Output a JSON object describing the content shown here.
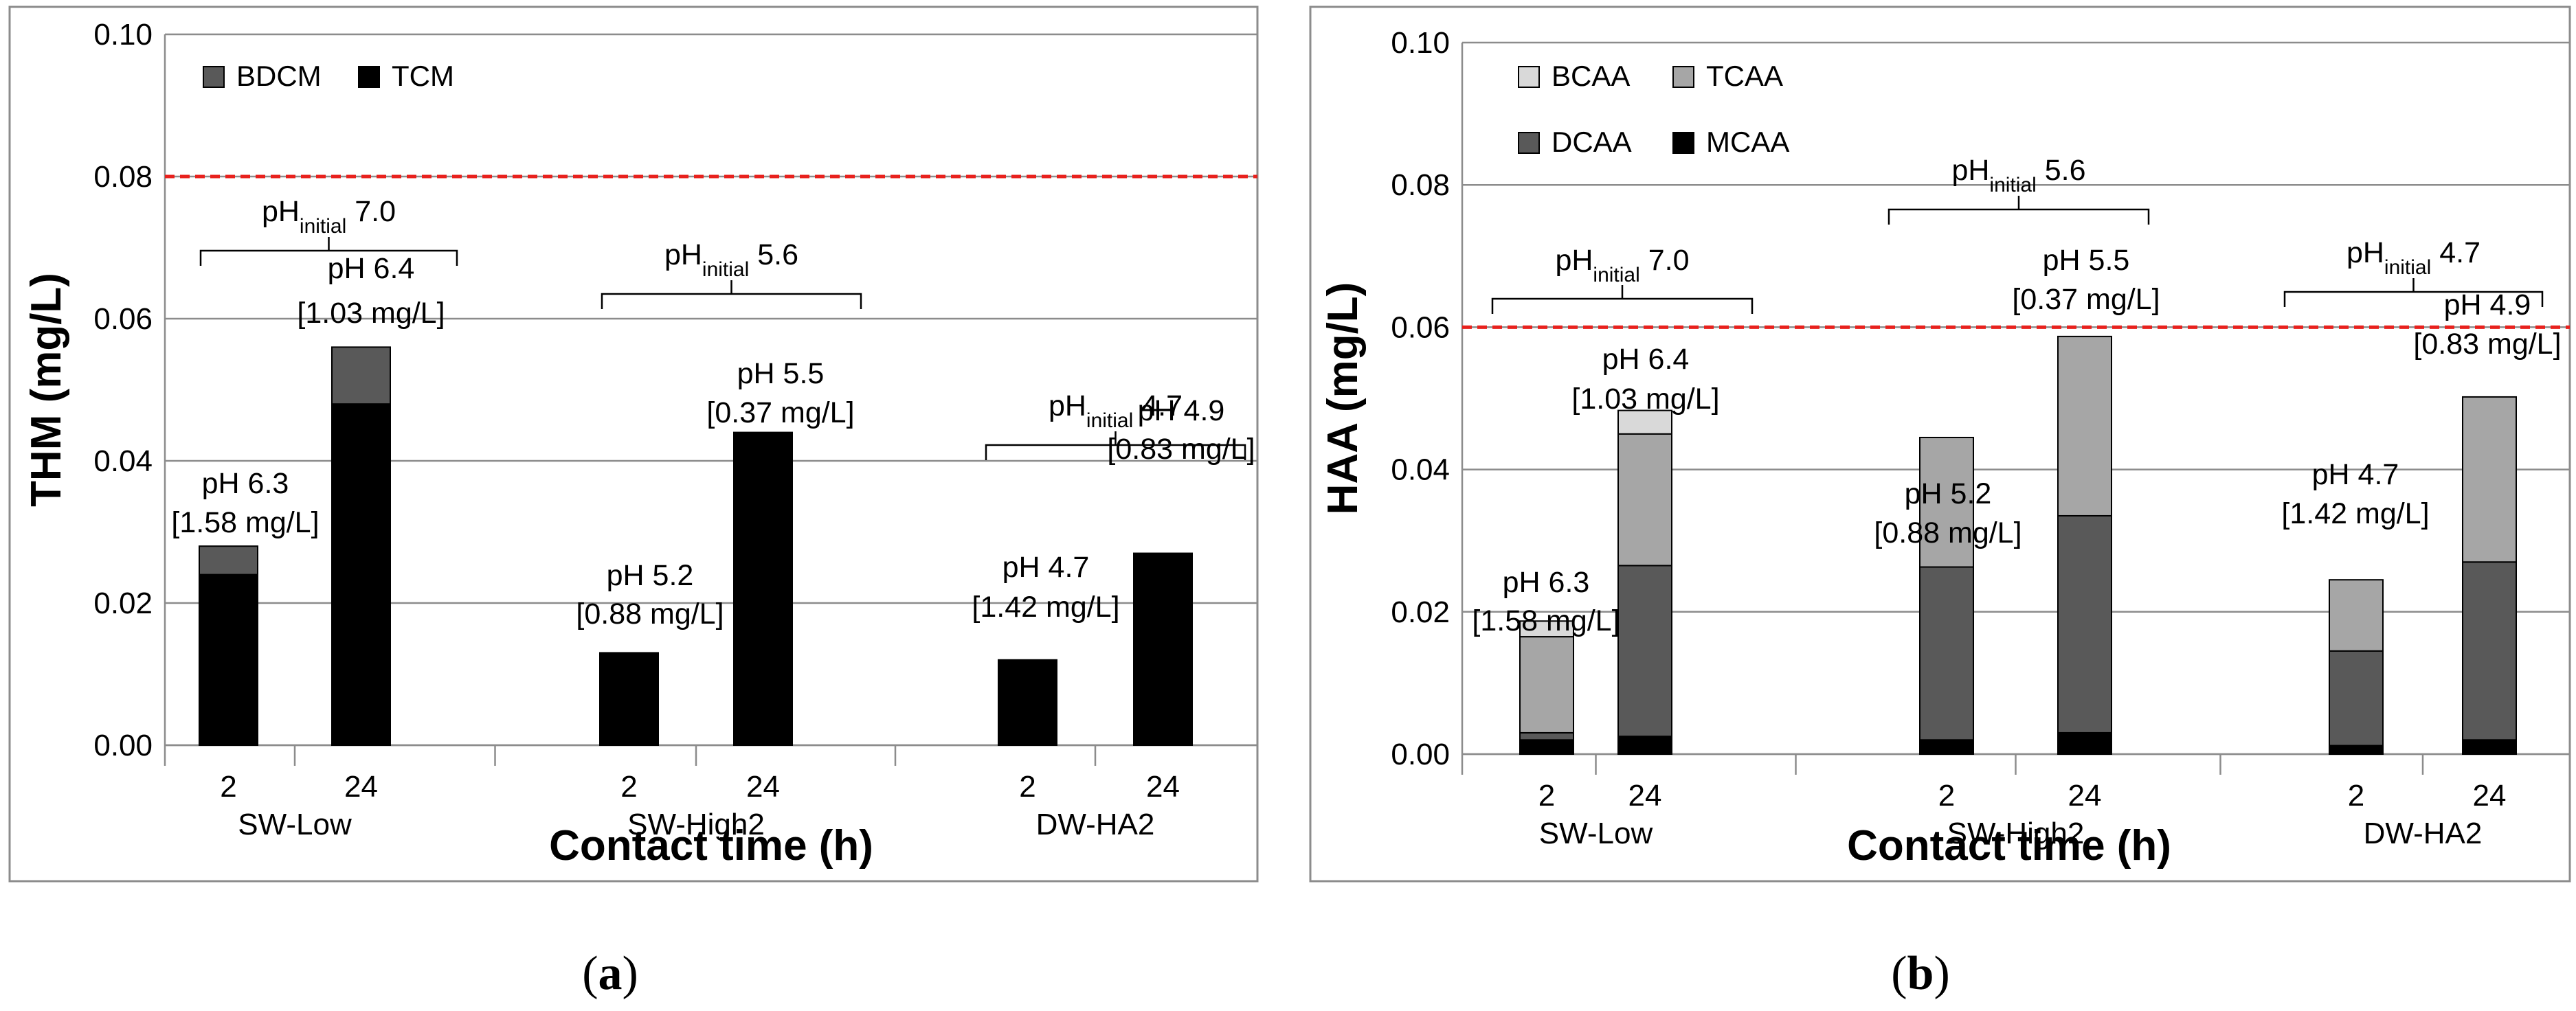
{
  "chart_data": [
    {
      "panel": "a",
      "type": "bar",
      "stacked": true,
      "caption": "(a)",
      "caption_letter": "a",
      "ylabel": "THM (mg/L)",
      "xlabel": "Contact time (h)",
      "ylim": [
        0,
        0.1
      ],
      "yticks": [
        "0.00",
        "0.02",
        "0.04",
        "0.06",
        "0.08",
        "0.10"
      ],
      "ytick_values": [
        0,
        0.02,
        0.04,
        0.06,
        0.08,
        0.1
      ],
      "grid": true,
      "threshold": 0.08,
      "threshold_color": "#e8211d",
      "legend": [
        "BDCM",
        "TCM"
      ],
      "series_colors": {
        "TCM": "#000000",
        "BDCM": "#595959"
      },
      "groups": [
        {
          "name": "SW-Low",
          "initial_prefix": "pH",
          "initial_sub": "initial",
          "initial_value": "7.0",
          "categories": [
            "2",
            "24"
          ],
          "bars": [
            {
              "TCM": 0.024,
              "BDCM": 0.004,
              "label_ph": "pH 6.3",
              "label_dose": "[1.58 mg/L]"
            },
            {
              "TCM": 0.048,
              "BDCM": 0.008,
              "label_ph": "pH 6.4",
              "label_dose": "[1.03 mg/L]"
            }
          ]
        },
        {
          "name": "SW-High2",
          "initial_prefix": "pH",
          "initial_sub": "initial",
          "initial_value": "5.6",
          "categories": [
            "2",
            "24"
          ],
          "bars": [
            {
              "TCM": 0.013,
              "BDCM": 0,
              "label_ph": "pH 5.2",
              "label_dose": "[0.88 mg/L]"
            },
            {
              "TCM": 0.044,
              "BDCM": 0,
              "label_ph": "pH 5.5",
              "label_dose": "[0.37 mg/L]"
            }
          ]
        },
        {
          "name": "DW-HA2",
          "initial_prefix": "pH",
          "initial_sub": "initial",
          "initial_value": "4.7",
          "categories": [
            "2",
            "24"
          ],
          "bars": [
            {
              "TCM": 0.012,
              "BDCM": 0,
              "label_ph": "pH 4.7",
              "label_dose": "[1.42 mg/L]"
            },
            {
              "TCM": 0.027,
              "BDCM": 0,
              "label_ph": "pH 4.9",
              "label_dose": "[0.83 mg/L]"
            }
          ]
        }
      ]
    },
    {
      "panel": "b",
      "type": "bar",
      "stacked": true,
      "caption": "(b)",
      "caption_letter": "b",
      "ylabel": "HAA (mg/L)",
      "xlabel": "Contact time (h)",
      "ylim": [
        0,
        0.1
      ],
      "yticks": [
        "0.00",
        "0.02",
        "0.04",
        "0.06",
        "0.08",
        "0.10"
      ],
      "ytick_values": [
        0,
        0.02,
        0.04,
        0.06,
        0.08,
        0.1
      ],
      "grid": true,
      "threshold": 0.06,
      "threshold_color": "#e8211d",
      "legend": [
        "BCAA",
        "TCAA",
        "DCAA",
        "MCAA"
      ],
      "series_colors": {
        "MCAA": "#000000",
        "DCAA": "#595959",
        "TCAA": "#a6a6a6",
        "BCAA": "#d9d9d9"
      },
      "groups": [
        {
          "name": "SW-Low",
          "initial_prefix": "pH",
          "initial_sub": "initial",
          "initial_value": "7.0",
          "categories": [
            "2",
            "24"
          ],
          "bars": [
            {
              "MCAA": 0.002,
              "DCAA": 0.001,
              "TCAA": 0.0135,
              "BCAA": 0.0022,
              "label_ph": "pH 6.3",
              "label_dose": "[1.58 mg/L]"
            },
            {
              "MCAA": 0.0025,
              "DCAA": 0.024,
              "TCAA": 0.0185,
              "BCAA": 0.0033,
              "label_ph": "pH 6.4",
              "label_dose": "[1.03 mg/L]"
            }
          ]
        },
        {
          "name": "SW-High2",
          "initial_prefix": "pH",
          "initial_sub": "initial",
          "initial_value": "5.6",
          "categories": [
            "2",
            "24"
          ],
          "bars": [
            {
              "MCAA": 0.002,
              "DCAA": 0.0243,
              "TCAA": 0.0182,
              "BCAA": 0,
              "label_ph": "pH 5.2",
              "label_dose": "[0.88 mg/L]"
            },
            {
              "MCAA": 0.003,
              "DCAA": 0.0305,
              "TCAA": 0.0252,
              "BCAA": 0,
              "label_ph": "pH 5.5",
              "label_dose": "[0.37 mg/L]"
            }
          ]
        },
        {
          "name": "DW-HA2",
          "initial_prefix": "pH",
          "initial_sub": "initial",
          "initial_value": "4.7",
          "categories": [
            "2",
            "24"
          ],
          "bars": [
            {
              "MCAA": 0.0012,
              "DCAA": 0.0133,
              "TCAA": 0.01,
              "BCAA": 0,
              "label_ph": "pH 4.7",
              "label_dose": "[1.42 mg/L]"
            },
            {
              "MCAA": 0.002,
              "DCAA": 0.025,
              "TCAA": 0.0232,
              "BCAA": 0,
              "label_ph": "pH 4.9",
              "label_dose": "[0.83 mg/L]"
            }
          ]
        }
      ]
    }
  ]
}
